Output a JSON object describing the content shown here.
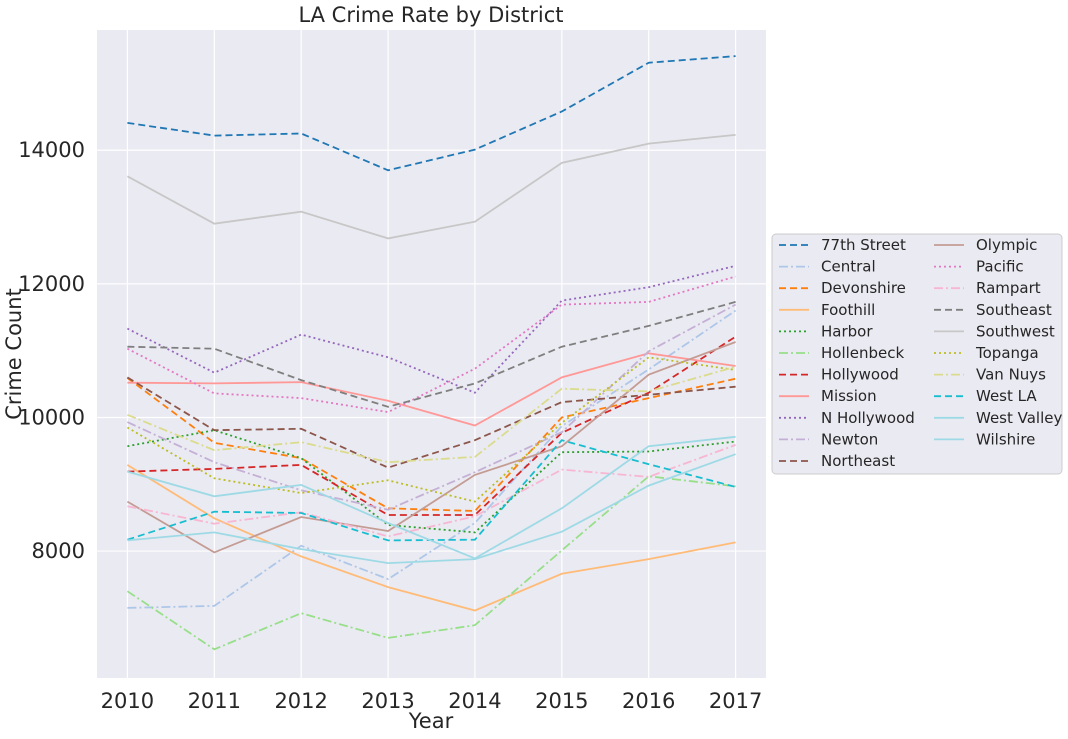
{
  "chart_data": {
    "type": "line",
    "title": "LA Crime Rate by District",
    "xlabel": "Year",
    "ylabel": "Crime Count",
    "x": [
      2010,
      2011,
      2012,
      2013,
      2014,
      2015,
      2016,
      2017
    ],
    "xlim": [
      2009.65,
      2017.35
    ],
    "ylim": [
      6100,
      15800
    ],
    "y_ticks": [
      8000,
      10000,
      12000,
      14000
    ],
    "grid": true,
    "legend_position": "right",
    "background": "#eaeaf2",
    "series": [
      {
        "name": "77th Street",
        "color": "#1f77b4",
        "dash": "dashed",
        "values": [
          14410,
          14220,
          14250,
          13700,
          14010,
          14580,
          15310,
          15410
        ]
      },
      {
        "name": "Central",
        "color": "#aec7e8",
        "dash": "dashdot",
        "values": [
          7150,
          7180,
          8080,
          7580,
          8420,
          9870,
          10720,
          11600
        ]
      },
      {
        "name": "Devonshire",
        "color": "#ff7f0e",
        "dash": "dashed",
        "values": [
          10590,
          9620,
          9390,
          8640,
          8600,
          10000,
          10290,
          10580
        ]
      },
      {
        "name": "Foothill",
        "color": "#ffbb78",
        "dash": "solid",
        "values": [
          9290,
          8490,
          7920,
          7460,
          7110,
          7660,
          7880,
          8130
        ]
      },
      {
        "name": "Harbor",
        "color": "#2ca02c",
        "dash": "dotted",
        "values": [
          9570,
          9810,
          9390,
          8390,
          8280,
          9480,
          9490,
          9640
        ]
      },
      {
        "name": "Hollenbeck",
        "color": "#98df8a",
        "dash": "dashdot",
        "values": [
          7400,
          6530,
          7070,
          6700,
          6890,
          8010,
          9120,
          8970
        ]
      },
      {
        "name": "Hollywood",
        "color": "#d62728",
        "dash": "dashed",
        "values": [
          9190,
          9230,
          9290,
          8540,
          8540,
          9770,
          10370,
          11210
        ]
      },
      {
        "name": "Mission",
        "color": "#ff9896",
        "dash": "solid",
        "values": [
          10520,
          10510,
          10530,
          10250,
          9880,
          10600,
          10960,
          10770
        ]
      },
      {
        "name": "N Hollywood",
        "color": "#9467bd",
        "dash": "dotted",
        "values": [
          11330,
          10670,
          11240,
          10900,
          10370,
          11750,
          11950,
          12270
        ]
      },
      {
        "name": "Newton",
        "color": "#c5b0d5",
        "dash": "dashdot",
        "values": [
          9930,
          9330,
          8910,
          8620,
          9180,
          9780,
          10990,
          11690
        ]
      },
      {
        "name": "Northeast",
        "color": "#8c564b",
        "dash": "dashed",
        "values": [
          10600,
          9810,
          9830,
          9250,
          9660,
          10230,
          10340,
          10460
        ]
      },
      {
        "name": "Olympic",
        "color": "#c49c94",
        "dash": "solid",
        "values": [
          8740,
          7980,
          8510,
          8300,
          9140,
          9570,
          10640,
          11130
        ]
      },
      {
        "name": "Pacific",
        "color": "#e377c2",
        "dash": "dotted",
        "values": [
          11030,
          10360,
          10290,
          10080,
          10730,
          11690,
          11730,
          12110
        ]
      },
      {
        "name": "Rampart",
        "color": "#f7b6d2",
        "dash": "dashdot",
        "values": [
          8670,
          8410,
          8580,
          8220,
          8520,
          9220,
          9110,
          9590
        ]
      },
      {
        "name": "Southeast",
        "color": "#7f7f7f",
        "dash": "dashed",
        "values": [
          11060,
          11030,
          10560,
          10160,
          10510,
          11060,
          11370,
          11730
        ]
      },
      {
        "name": "Southwest",
        "color": "#c7c7c7",
        "dash": "solid",
        "values": [
          13610,
          12900,
          13080,
          12680,
          12930,
          13810,
          14100,
          14230
        ]
      },
      {
        "name": "Topanga",
        "color": "#bcbd22",
        "dash": "dotted",
        "values": [
          9850,
          9090,
          8870,
          9060,
          8740,
          9920,
          10900,
          10710
        ]
      },
      {
        "name": "Van Nuys",
        "color": "#dbdb8d",
        "dash": "dashdot",
        "values": [
          10040,
          9510,
          9630,
          9330,
          9410,
          10430,
          10390,
          10760
        ]
      },
      {
        "name": "West LA",
        "color": "#17becf",
        "dash": "dashed",
        "values": [
          8170,
          8590,
          8570,
          8160,
          8170,
          9660,
          9300,
          8960
        ]
      },
      {
        "name": "West Valley",
        "color": "#9edae5",
        "dash": "solid",
        "values": [
          9190,
          8820,
          8990,
          8420,
          7890,
          8640,
          9570,
          9710
        ]
      },
      {
        "name": "Wilshire",
        "color": "#9edae5",
        "dash": "solid",
        "values": [
          8160,
          8280,
          8030,
          7820,
          7880,
          8290,
          8980,
          9450
        ]
      }
    ]
  }
}
